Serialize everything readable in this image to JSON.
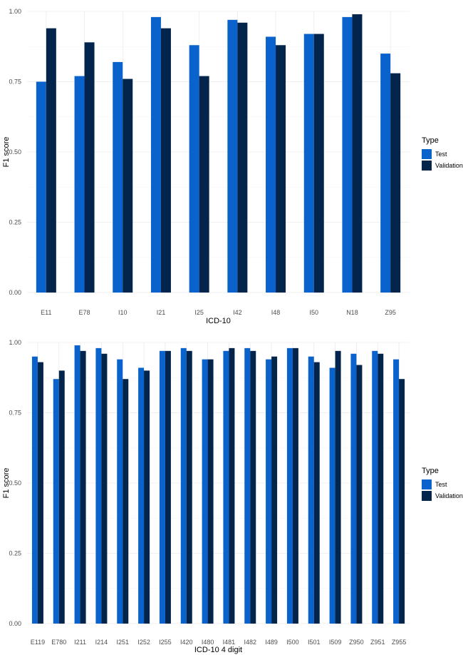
{
  "chart_data": [
    {
      "type": "bar",
      "xlabel": "ICD-10",
      "ylabel": "F1 score",
      "ylim": [
        0,
        1.0
      ],
      "yticks": [
        0.0,
        0.25,
        0.5,
        0.75,
        1.0
      ],
      "ytick_labels": [
        "0.00",
        "0.25",
        "0.50",
        "0.75",
        "1.00"
      ],
      "grid": true,
      "legend": {
        "title": "Type",
        "placement": "right"
      },
      "categories": [
        "E11",
        "E78",
        "I10",
        "I21",
        "I25",
        "I42",
        "I48",
        "I50",
        "N18",
        "Z95"
      ],
      "series": [
        {
          "name": "Test",
          "color": "#0a63cc",
          "values": [
            0.75,
            0.77,
            0.82,
            0.98,
            0.88,
            0.97,
            0.91,
            0.92,
            0.98,
            0.85
          ]
        },
        {
          "name": "Validation",
          "color": "#03254c",
          "values": [
            0.94,
            0.89,
            0.76,
            0.94,
            0.77,
            0.96,
            0.88,
            0.92,
            0.99,
            0.78
          ]
        }
      ]
    },
    {
      "type": "bar",
      "xlabel": "ICD-10 4 digit",
      "ylabel": "F1 score",
      "ylim": [
        0,
        1.0
      ],
      "yticks": [
        0.0,
        0.25,
        0.5,
        0.75,
        1.0
      ],
      "ytick_labels": [
        "0.00",
        "0.25",
        "0.50",
        "0.75",
        "1.00"
      ],
      "grid": true,
      "legend": {
        "title": "Type",
        "placement": "right"
      },
      "categories": [
        "E119",
        "E780",
        "I211",
        "I214",
        "I251",
        "I252",
        "I255",
        "I420",
        "I480",
        "I481",
        "I482",
        "I489",
        "I500",
        "I501",
        "I509",
        "Z950",
        "Z951",
        "Z955"
      ],
      "series": [
        {
          "name": "Test",
          "color": "#0a63cc",
          "values": [
            0.95,
            0.87,
            0.99,
            0.98,
            0.94,
            0.91,
            0.97,
            0.98,
            0.94,
            0.97,
            0.98,
            0.94,
            0.98,
            0.95,
            0.91,
            0.96,
            0.97,
            0.94
          ]
        },
        {
          "name": "Validation",
          "color": "#03254c",
          "values": [
            0.93,
            0.9,
            0.97,
            0.96,
            0.87,
            0.9,
            0.97,
            0.97,
            0.94,
            0.98,
            0.97,
            0.95,
            0.98,
            0.93,
            0.97,
            0.92,
            0.96,
            0.87
          ]
        }
      ]
    }
  ]
}
